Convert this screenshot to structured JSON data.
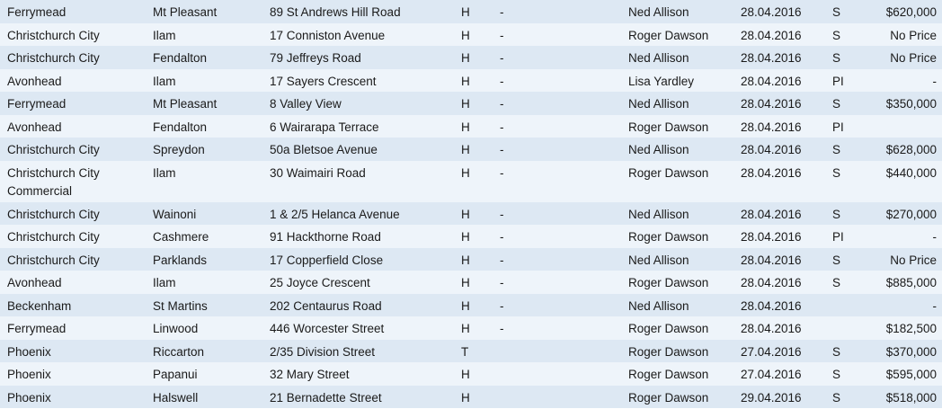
{
  "rows": [
    [
      "Ferrymead",
      "Mt Pleasant",
      "89 St Andrews Hill Road",
      "H",
      "-",
      "Ned Allison",
      "28.04.2016",
      "S",
      "$620,000"
    ],
    [
      "Christchurch City",
      "Ilam",
      "17 Conniston Avenue",
      "H",
      "-",
      "Roger Dawson",
      "28.04.2016",
      "S",
      "No Price"
    ],
    [
      "Christchurch City",
      "Fendalton",
      "79 Jeffreys Road",
      "H",
      "-",
      "Ned Allison",
      "28.04.2016",
      "S",
      "No Price"
    ],
    [
      "Avonhead",
      "Ilam",
      "17 Sayers Crescent",
      "H",
      "-",
      "Lisa Yardley",
      "28.04.2016",
      "PI",
      "-"
    ],
    [
      "Ferrymead",
      "Mt Pleasant",
      "8 Valley View",
      "H",
      "-",
      "Ned Allison",
      "28.04.2016",
      "S",
      "$350,000"
    ],
    [
      "Avonhead",
      "Fendalton",
      "6 Wairarapa Terrace",
      "H",
      "-",
      " Roger Dawson",
      "28.04.2016",
      "PI",
      ""
    ],
    [
      "Christchurch City",
      "Spreydon",
      "50a Bletsoe Avenue",
      "H",
      "-",
      "Ned Allison",
      "28.04.2016",
      "S",
      "$628,000"
    ],
    [
      "Christchurch City Commercial",
      "Ilam",
      "30 Waimairi Road",
      "H",
      "-",
      "Roger Dawson",
      "28.04.2016",
      "S",
      "$440,000"
    ],
    [
      "Christchurch City",
      "Wainoni",
      "1 & 2/5 Helanca Avenue",
      "H",
      "-",
      "Ned Allison",
      "28.04.2016",
      "S",
      "$270,000"
    ],
    [
      "Christchurch City",
      "Cashmere",
      "91 Hackthorne Road",
      "H",
      "-",
      "Roger Dawson",
      "28.04.2016",
      "PI",
      "-"
    ],
    [
      "Christchurch City",
      "Parklands",
      "17 Copperfield Close",
      "H",
      "-",
      "Ned Allison",
      "28.04.2016",
      "S",
      "No Price"
    ],
    [
      "Avonhead",
      "Ilam",
      "25 Joyce Crescent",
      "H",
      "-",
      "Roger Dawson",
      "28.04.2016",
      "S",
      "$885,000"
    ],
    [
      "Beckenham",
      "St Martins",
      "202 Centaurus Road",
      "H",
      "-",
      "Ned Allison",
      "28.04.2016",
      "",
      "-"
    ],
    [
      "Ferrymead",
      "Linwood",
      "446 Worcester Street",
      "H",
      "-",
      "Roger Dawson",
      "28.04.2016",
      "",
      "$182,500"
    ],
    [
      "Phoenix",
      "Riccarton",
      "2/35 Division Street",
      "T",
      "",
      "Roger Dawson",
      "27.04.2016",
      "S",
      "$370,000"
    ],
    [
      "Phoenix",
      "Papanui",
      "32 Mary Street",
      "H",
      "",
      "Roger Dawson",
      "27.04.2016",
      "S",
      "$595,000"
    ],
    [
      "Phoenix",
      "Halswell",
      "21 Bernadette Street",
      "H",
      "",
      "Roger Dawson",
      "29.04.2016",
      "S",
      "$518,000"
    ]
  ]
}
